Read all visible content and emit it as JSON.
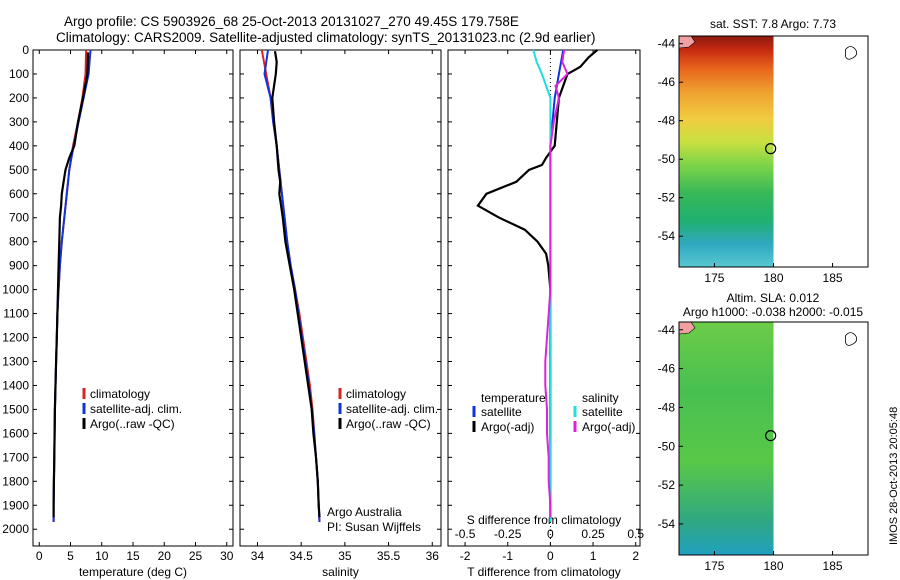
{
  "header": {
    "line1": "Argo profile: CS 5903926_68 25-Oct-2013 20131027_270 49.45S 179.758E",
    "line2": "Climatology: CARS2009. Satellite-adjusted climatology: synTS_20131023.nc (2.9d earlier)"
  },
  "stamp": "IMOS 28-Oct-2013 20:05:48",
  "depth_ticks": [
    0,
    100,
    200,
    300,
    400,
    500,
    600,
    700,
    800,
    900,
    1000,
    1100,
    1200,
    1300,
    1400,
    1500,
    1600,
    1700,
    1800,
    1900,
    2000
  ],
  "colors": {
    "climatology": "#dd2222",
    "satellite": "#1133dd",
    "argo": "#000000",
    "sal_satellite": "#22dddd",
    "sal_argo": "#dd22dd"
  },
  "chart_data": [
    {
      "type": "line",
      "id": "temperature",
      "xlabel": "temperature (deg C)",
      "ylabel": "",
      "xlim": [
        -1,
        31
      ],
      "ylim": [
        2070,
        0
      ],
      "xticks": [
        0,
        5,
        10,
        15,
        20,
        25,
        30
      ],
      "legend": {
        "placement": "bottom-right",
        "entries": [
          "climatology",
          "satellite-adj. clim.",
          "Argo(..raw -QC)"
        ]
      },
      "series": [
        {
          "name": "climatology",
          "color_key": "climatology",
          "points": [
            [
              7.5,
              0
            ],
            [
              7.4,
              100
            ],
            [
              6.9,
              200
            ],
            [
              6.2,
              300
            ],
            [
              5.4,
              400
            ],
            [
              4.8,
              500
            ],
            [
              4.4,
              600
            ],
            [
              4.0,
              700
            ],
            [
              3.6,
              800
            ],
            [
              3.3,
              900
            ],
            [
              3.1,
              1000
            ],
            [
              2.9,
              1100
            ],
            [
              2.8,
              1200
            ],
            [
              2.7,
              1300
            ],
            [
              2.6,
              1400
            ],
            [
              2.5,
              1500
            ],
            [
              2.45,
              1600
            ],
            [
              2.4,
              1700
            ],
            [
              2.35,
              1800
            ],
            [
              2.3,
              1900
            ],
            [
              2.3,
              1970
            ]
          ]
        },
        {
          "name": "satellite-adj. clim.",
          "color_key": "satellite",
          "points": [
            [
              8.2,
              0
            ],
            [
              7.9,
              100
            ],
            [
              7.1,
              200
            ],
            [
              6.3,
              300
            ],
            [
              5.5,
              400
            ],
            [
              4.8,
              500
            ],
            [
              4.4,
              600
            ],
            [
              4.0,
              700
            ],
            [
              3.6,
              800
            ],
            [
              3.3,
              900
            ],
            [
              3.1,
              1000
            ],
            [
              2.9,
              1100
            ],
            [
              2.8,
              1200
            ],
            [
              2.7,
              1300
            ],
            [
              2.6,
              1400
            ],
            [
              2.5,
              1500
            ],
            [
              2.45,
              1600
            ],
            [
              2.4,
              1700
            ],
            [
              2.35,
              1800
            ],
            [
              2.3,
              1900
            ],
            [
              2.3,
              1970
            ]
          ]
        },
        {
          "name": "Argo(..raw -QC)",
          "color_key": "argo",
          "points": [
            [
              7.8,
              10
            ],
            [
              7.7,
              100
            ],
            [
              7.0,
              200
            ],
            [
              6.2,
              300
            ],
            [
              5.6,
              400
            ],
            [
              4.8,
              450
            ],
            [
              4.2,
              500
            ],
            [
              3.9,
              550
            ],
            [
              3.6,
              600
            ],
            [
              3.5,
              650
            ],
            [
              3.3,
              700
            ],
            [
              3.2,
              800
            ],
            [
              3.1,
              900
            ],
            [
              3.0,
              1000
            ],
            [
              2.9,
              1100
            ],
            [
              2.8,
              1200
            ],
            [
              2.7,
              1300
            ],
            [
              2.6,
              1400
            ],
            [
              2.5,
              1500
            ],
            [
              2.45,
              1600
            ],
            [
              2.4,
              1700
            ],
            [
              2.35,
              1800
            ],
            [
              2.3,
              1900
            ],
            [
              2.3,
              1950
            ]
          ]
        }
      ]
    },
    {
      "type": "line",
      "id": "salinity",
      "xlabel": "salinity",
      "ylabel": "",
      "xlim": [
        33.8,
        36.1
      ],
      "ylim": [
        2070,
        0
      ],
      "xticks": [
        34,
        34.5,
        35,
        35.5,
        36
      ],
      "legend": {
        "placement": "bottom-right",
        "entries": [
          "climatology",
          "satellite-adj. clim.",
          "Argo(..raw -QC)"
        ]
      },
      "annotation": [
        "Argo Australia",
        "PI: Susan Wijffels"
      ],
      "series": [
        {
          "name": "climatology",
          "color_key": "climatology",
          "points": [
            [
              34.05,
              0
            ],
            [
              34.1,
              100
            ],
            [
              34.15,
              200
            ],
            [
              34.18,
              300
            ],
            [
              34.22,
              400
            ],
            [
              34.25,
              500
            ],
            [
              34.28,
              600
            ],
            [
              34.31,
              700
            ],
            [
              34.34,
              800
            ],
            [
              34.38,
              900
            ],
            [
              34.43,
              1000
            ],
            [
              34.48,
              1100
            ],
            [
              34.52,
              1200
            ],
            [
              34.56,
              1300
            ],
            [
              34.6,
              1400
            ],
            [
              34.63,
              1500
            ],
            [
              34.65,
              1600
            ],
            [
              34.67,
              1700
            ],
            [
              34.69,
              1800
            ],
            [
              34.7,
              1900
            ],
            [
              34.71,
              1970
            ]
          ]
        },
        {
          "name": "satellite-adj. clim.",
          "color_key": "satellite",
          "points": [
            [
              34.12,
              0
            ],
            [
              34.08,
              100
            ],
            [
              34.15,
              200
            ],
            [
              34.18,
              300
            ],
            [
              34.22,
              400
            ],
            [
              34.25,
              500
            ],
            [
              34.28,
              600
            ],
            [
              34.31,
              700
            ],
            [
              34.34,
              800
            ],
            [
              34.38,
              900
            ],
            [
              34.43,
              1000
            ],
            [
              34.47,
              1100
            ],
            [
              34.51,
              1200
            ],
            [
              34.55,
              1300
            ],
            [
              34.59,
              1400
            ],
            [
              34.62,
              1500
            ],
            [
              34.65,
              1600
            ],
            [
              34.67,
              1700
            ],
            [
              34.69,
              1800
            ],
            [
              34.7,
              1900
            ],
            [
              34.71,
              1970
            ]
          ]
        },
        {
          "name": "Argo(..raw -QC)",
          "color_key": "argo",
          "points": [
            [
              34.2,
              5
            ],
            [
              34.22,
              50
            ],
            [
              34.21,
              100
            ],
            [
              34.17,
              200
            ],
            [
              34.19,
              300
            ],
            [
              34.22,
              400
            ],
            [
              34.24,
              500
            ],
            [
              34.26,
              550
            ],
            [
              34.25,
              600
            ],
            [
              34.27,
              650
            ],
            [
              34.29,
              700
            ],
            [
              34.32,
              800
            ],
            [
              34.37,
              900
            ],
            [
              34.42,
              1000
            ],
            [
              34.46,
              1100
            ],
            [
              34.5,
              1200
            ],
            [
              34.54,
              1300
            ],
            [
              34.58,
              1400
            ],
            [
              34.62,
              1500
            ],
            [
              34.64,
              1600
            ],
            [
              34.67,
              1700
            ],
            [
              34.69,
              1800
            ],
            [
              34.7,
              1900
            ],
            [
              34.71,
              1950
            ]
          ]
        }
      ]
    },
    {
      "type": "line",
      "id": "difference",
      "xlabel": "T difference from climatology",
      "x2label": "S difference from climatology",
      "xlim": [
        -2.4,
        2.1
      ],
      "ylim": [
        2070,
        0
      ],
      "xticks": [
        -2,
        -1,
        0,
        1,
        2
      ],
      "x2ticks": [
        -0.5,
        -0.25,
        0,
        0.25,
        0.5
      ],
      "x2tick_labels": [
        "-0.5",
        "-0.25",
        "0",
        "0.25",
        "0.5"
      ],
      "legend": {
        "placement": "bottom",
        "temperature_heading": "temperature",
        "salinity_heading": "salinity",
        "entries": [
          "satellite",
          "Argo(-adj)",
          "satellite",
          "Argo(-adj)"
        ]
      },
      "series": [
        {
          "name": "temperature satellite",
          "color_key": "satellite",
          "points": [
            [
              0.3,
              0
            ],
            [
              0.2,
              100
            ],
            [
              0.1,
              200
            ],
            [
              0.05,
              300
            ],
            [
              0,
              400
            ],
            [
              0,
              600
            ],
            [
              0,
              800
            ],
            [
              0,
              1000
            ],
            [
              0,
              1200
            ],
            [
              0,
              1400
            ],
            [
              0,
              1600
            ],
            [
              0,
              1800
            ],
            [
              0,
              1970
            ]
          ]
        },
        {
          "name": "temperature Argo(-adj)",
          "color_key": "argo",
          "points": [
            [
              1.1,
              0
            ],
            [
              0.9,
              30
            ],
            [
              0.7,
              70
            ],
            [
              0.4,
              100
            ],
            [
              0.3,
              150
            ],
            [
              0.2,
              200
            ],
            [
              0.15,
              300
            ],
            [
              0.1,
              400
            ],
            [
              -0.1,
              450
            ],
            [
              -0.2,
              480
            ],
            [
              -0.5,
              500
            ],
            [
              -0.8,
              550
            ],
            [
              -1.5,
              600
            ],
            [
              -1.7,
              650
            ],
            [
              -1.2,
              700
            ],
            [
              -0.6,
              750
            ],
            [
              -0.3,
              800
            ],
            [
              -0.1,
              850
            ],
            [
              -0.05,
              900
            ],
            [
              0,
              1000
            ],
            [
              0,
              1200
            ],
            [
              0,
              1400
            ],
            [
              0,
              1600
            ],
            [
              0,
              1800
            ],
            [
              0,
              1950
            ]
          ]
        },
        {
          "name": "salinity satellite",
          "color_key": "sal_satellite",
          "points": [
            [
              -0.1,
              0
            ],
            [
              -0.08,
              50
            ],
            [
              -0.05,
              100
            ],
            [
              0,
              200
            ],
            [
              0,
              400
            ],
            [
              0,
              600
            ],
            [
              0,
              800
            ],
            [
              0,
              1000
            ],
            [
              0,
              1200
            ],
            [
              0,
              1400
            ],
            [
              0,
              1600
            ],
            [
              0,
              1800
            ],
            [
              0,
              1970
            ]
          ]
        },
        {
          "name": "salinity Argo(-adj)",
          "color_key": "sal_argo",
          "points": [
            [
              0.08,
              0
            ],
            [
              0.07,
              50
            ],
            [
              0.1,
              100
            ],
            [
              0.03,
              150
            ],
            [
              0.05,
              200
            ],
            [
              0.02,
              300
            ],
            [
              0,
              400
            ],
            [
              0,
              600
            ],
            [
              0,
              800
            ],
            [
              0,
              1000
            ],
            [
              -0.01,
              1100
            ],
            [
              -0.02,
              1200
            ],
            [
              -0.03,
              1300
            ],
            [
              -0.03,
              1400
            ],
            [
              -0.02,
              1500
            ],
            [
              -0.02,
              1600
            ],
            [
              -0.01,
              1700
            ],
            [
              -0.01,
              1800
            ],
            [
              0,
              1900
            ],
            [
              0,
              1950
            ]
          ]
        }
      ]
    },
    {
      "type": "heatmap",
      "id": "sst_map",
      "title": "sat. SST: 7.8  Argo: 7.73",
      "xlim": [
        172,
        188
      ],
      "ylim": [
        -55.6,
        -43.6
      ],
      "xticks": [
        175,
        180,
        185
      ],
      "yticks": [
        -44,
        -46,
        -48,
        -50,
        -52,
        -54
      ],
      "float_position": [
        179.758,
        -49.45
      ]
    },
    {
      "type": "heatmap",
      "id": "sla_map",
      "title": "Altim. SLA: 0.012",
      "subtitle": "Argo h1000: -0.038 h2000: -0.015",
      "xlim": [
        172,
        188
      ],
      "ylim": [
        -55.6,
        -43.6
      ],
      "xticks": [
        175,
        180,
        185
      ],
      "yticks": [
        -44,
        -46,
        -48,
        -50,
        -52,
        -54
      ],
      "float_position": [
        179.758,
        -49.45
      ]
    }
  ]
}
